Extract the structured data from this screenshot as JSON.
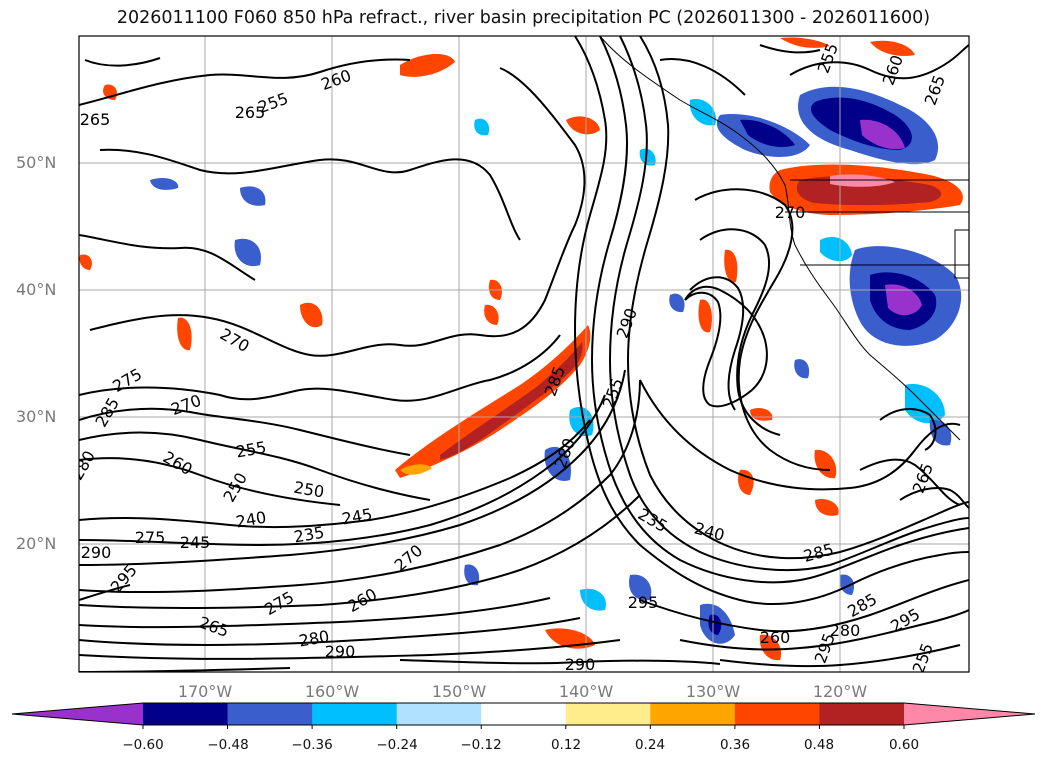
{
  "title": "2026011100 F060 850 hPa refract., river basin precipitation PC (2026011300 - 2026011600)",
  "lat_labels": [
    "50°N",
    "40°N",
    "30°N",
    "20°N"
  ],
  "lon_labels": [
    "170°W",
    "160°W",
    "150°W",
    "140°W",
    "130°W",
    "120°W"
  ],
  "colorbar": {
    "colors": [
      "#9932cc",
      "#00008b",
      "#3a5fcd",
      "#00bfff",
      "#b0e2ff",
      "#ffffff",
      "#ffec8b",
      "#ffa500",
      "#ff4500",
      "#b22222",
      "#ff88a8"
    ],
    "under_color": "#9932cc",
    "over_color": "#ff88a8",
    "tick_labels": [
      "−0.60",
      "−0.48",
      "−0.36",
      "−0.24",
      "−0.12",
      "0.12",
      "0.24",
      "0.36",
      "0.48",
      "0.60"
    ]
  },
  "contour_labels": [
    "265",
    "255",
    "265",
    "260",
    "255",
    "260",
    "265",
    "270",
    "275",
    "285",
    "280",
    "290",
    "270",
    "255",
    "260",
    "250",
    "250",
    "240",
    "235",
    "245",
    "275",
    "245",
    "270",
    "295",
    "275",
    "260",
    "265",
    "280",
    "290",
    "285",
    "280",
    "255",
    "235",
    "240",
    "285",
    "290",
    "295",
    "290",
    "295",
    "285",
    "280",
    "295",
    "260",
    "255",
    "265",
    "270"
  ]
}
